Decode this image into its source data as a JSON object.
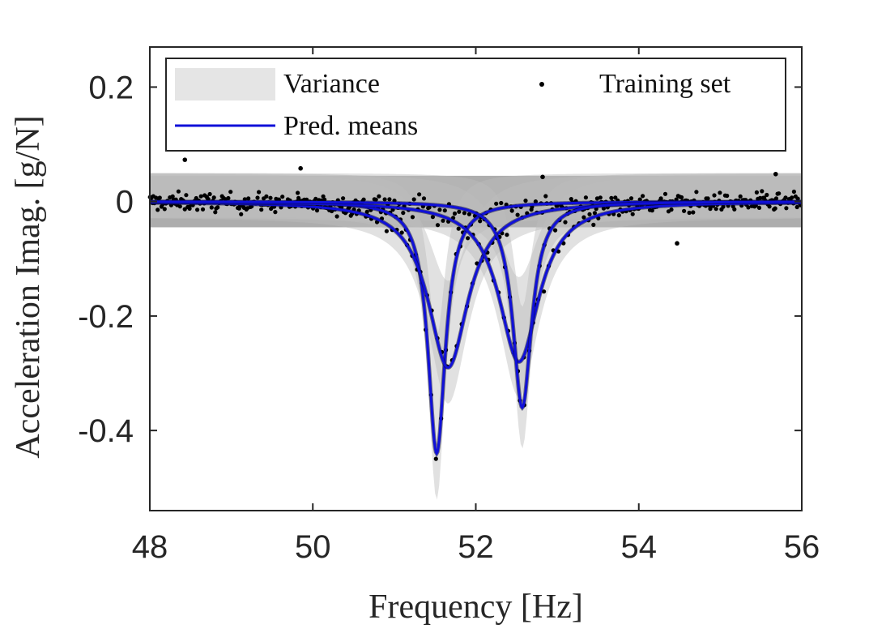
{
  "chart_data": {
    "type": "line",
    "title": "",
    "xlabel": "Frequency [Hz]",
    "ylabel": "Acceleration Imag. [g/N]",
    "xlim": [
      48,
      56
    ],
    "ylim": [
      -0.54,
      0.27
    ],
    "xticks": [
      48,
      50,
      52,
      54,
      56
    ],
    "yticks": [
      0.2,
      0,
      -0.2,
      -0.4
    ],
    "ytick_labels": [
      "0.2",
      "0",
      "-0.2",
      "-0.4"
    ],
    "grid": false,
    "legend": {
      "location": "top",
      "entries": [
        {
          "label": "Variance",
          "kind": "band"
        },
        {
          "label": "Training set",
          "kind": "dot"
        },
        {
          "label": "Pred. means",
          "kind": "line"
        }
      ]
    },
    "colors": {
      "mean_line": "#1010d8",
      "mean_line_shadow": "#0a0a40",
      "variance": "#bdbdbd",
      "variance_dark": "#8a8a8a",
      "points": "#000000"
    },
    "noise_band_halfwidth": 0.045,
    "series": [
      {
        "name": "Pred. means (peak 1, 51.52 Hz)",
        "f0": 51.52,
        "depth": -0.44,
        "halfwidth": 0.13
      },
      {
        "name": "Pred. means (peak 2, 51.66 Hz)",
        "f0": 51.66,
        "depth": -0.29,
        "halfwidth": 0.3
      },
      {
        "name": "Pred. means (peak 3, 52.53 Hz)",
        "f0": 52.53,
        "depth": -0.28,
        "halfwidth": 0.3
      },
      {
        "name": "Pred. means (peak 4, 52.57 Hz)",
        "f0": 52.57,
        "depth": -0.36,
        "halfwidth": 0.14
      }
    ],
    "training_set_outliers": [
      {
        "x": 48.43,
        "y": 0.073
      },
      {
        "x": 49.85,
        "y": 0.058
      },
      {
        "x": 54.47,
        "y": -0.073
      },
      {
        "x": 55.68,
        "y": 0.048
      },
      {
        "x": 52.82,
        "y": 0.043
      }
    ]
  }
}
